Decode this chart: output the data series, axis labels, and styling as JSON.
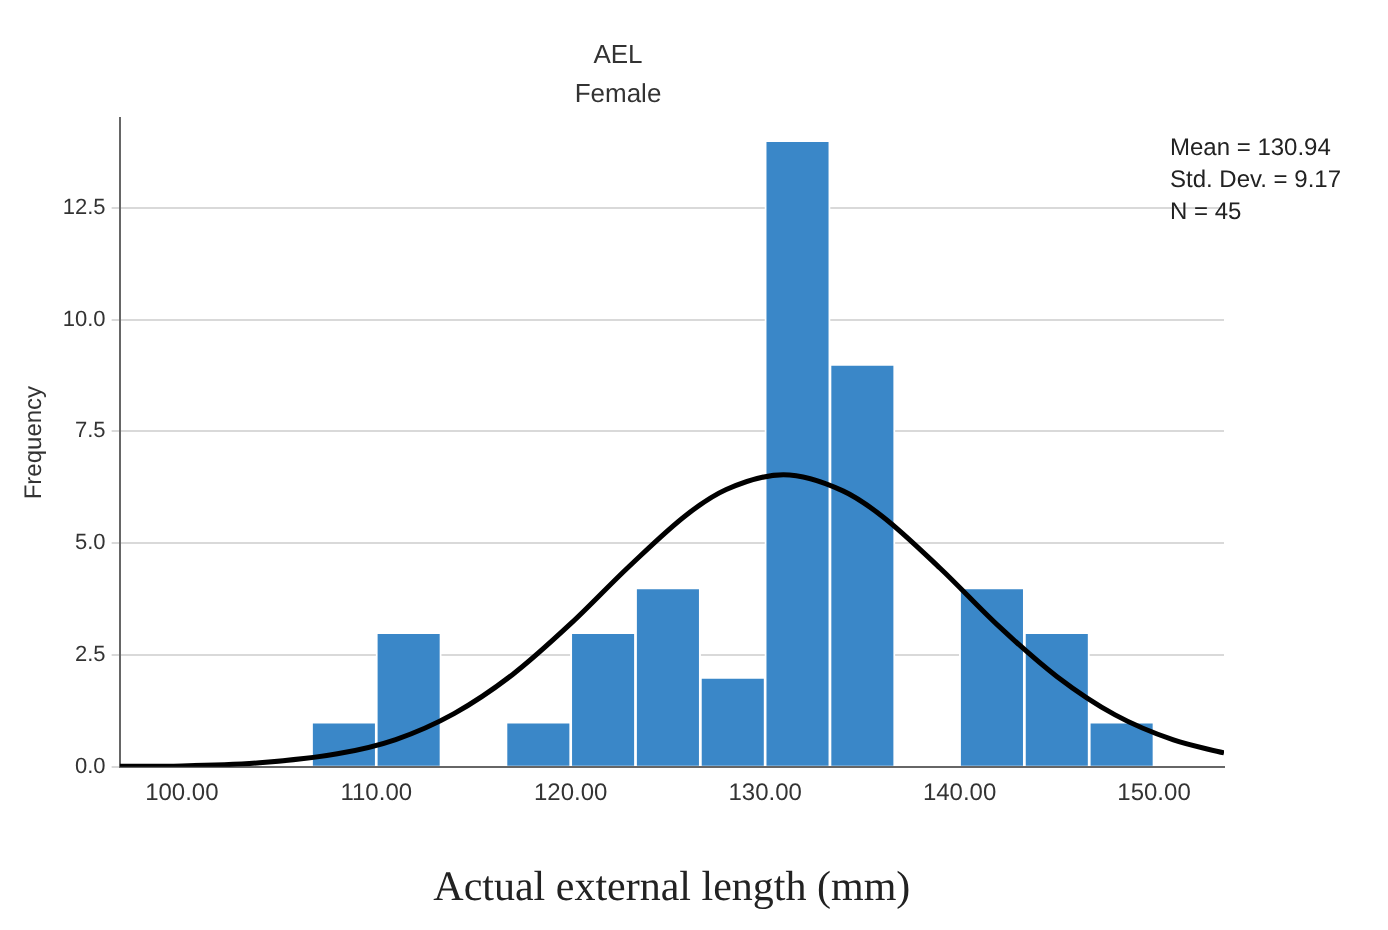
{
  "chart_data": {
    "type": "histogram",
    "title": "AEL",
    "subtitle": "Female",
    "xlabel": "Actual external length (mm)",
    "ylabel": "Frequency",
    "bins": [
      106.67,
      110,
      113.33,
      116.67,
      120,
      123.33,
      126.67,
      130,
      133.33,
      136.67,
      140,
      143.33,
      146.67,
      150
    ],
    "values": [
      1,
      3,
      0,
      1,
      3,
      4,
      2,
      14,
      9,
      0,
      4,
      3,
      1
    ],
    "color": "#3a87c8",
    "series": [
      {
        "type": "line",
        "color": "#000000",
        "x": [
          96.8,
          100,
          104,
          108,
          111,
          114,
          117,
          120,
          123,
          126,
          128,
          130.94,
          134,
          136,
          139,
          142,
          145,
          148,
          151,
          153.6
        ],
        "values": [
          0.01,
          0.02,
          0.09,
          0.29,
          0.61,
          1.19,
          2.06,
          3.2,
          4.48,
          5.65,
          6.2,
          6.53,
          6.17,
          5.61,
          4.44,
          3.15,
          2.02,
          1.16,
          0.6,
          0.31
        ]
      }
    ],
    "xlim": [
      96.8,
      153.6
    ],
    "ylim": [
      0,
      14.5
    ],
    "xticks": [
      {
        "value": 100,
        "label": "100.00"
      },
      {
        "value": 110,
        "label": "110.00"
      },
      {
        "value": 120,
        "label": "120.00"
      },
      {
        "value": 130,
        "label": "130.00"
      },
      {
        "value": 140,
        "label": "140.00"
      },
      {
        "value": 150,
        "label": "150.00"
      }
    ],
    "yticks": [
      {
        "value": 0,
        "label": "0.0"
      },
      {
        "value": 2.5,
        "label": "2.5"
      },
      {
        "value": 5,
        "label": "5.0"
      },
      {
        "value": 7.5,
        "label": "7.5"
      },
      {
        "value": 10,
        "label": "10.0"
      },
      {
        "value": 12.5,
        "label": "12.5"
      }
    ],
    "grid": "y",
    "legend": false,
    "marker": "none",
    "line_style": "solid",
    "annotations": [
      "Mean = 130.94",
      "Std. Dev. = 9.17",
      "N = 45"
    ]
  }
}
